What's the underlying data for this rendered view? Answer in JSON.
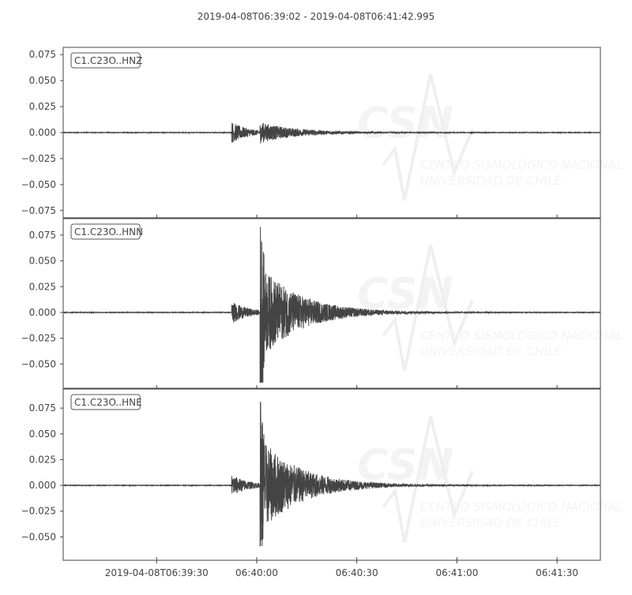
{
  "chart_data": {
    "type": "line",
    "title": "2019-04-08T06:39:02  -  2019-04-08T06:41:42.995",
    "start_time": "2019-04-08T06:39:02",
    "end_time": "2019-04-08T06:41:42.995",
    "x_ticks": [
      "2019-04-08T06:39:30",
      "06:40:00",
      "06:40:30",
      "06:41:00",
      "06:41:30"
    ],
    "x_tick_seconds": [
      28,
      58,
      88,
      118,
      148
    ],
    "line_color": "#444444",
    "grid": false,
    "watermark": {
      "logo": "CSN",
      "line1": "CENTRO SISMOLÓGICO NACIONAL",
      "line2": "UNIVERSIDAD DE CHILE"
    },
    "traces": [
      {
        "name": "C1.C23O..HNZ",
        "ylim": [
          -0.082,
          0.082
        ],
        "y_ticks": [
          "0.075",
          "0.050",
          "0.025",
          "0.000",
          "−0.025",
          "−0.050",
          "−0.075"
        ],
        "y_tick_values": [
          0.075,
          0.05,
          0.025,
          0,
          -0.025,
          -0.05,
          -0.075
        ],
        "p_onset_s": 50.5,
        "s_onset_s": 59,
        "peak_max": 0.012,
        "peak_min": -0.012
      },
      {
        "name": "C1.C23O..HNN",
        "ylim": [
          -0.0735,
          0.091
        ],
        "y_ticks": [
          "0.075",
          "0.050",
          "0.025",
          "0.000",
          "−0.025",
          "−0.050"
        ],
        "y_tick_values": [
          0.075,
          0.05,
          0.025,
          0,
          -0.025,
          -0.05
        ],
        "p_onset_s": 50.5,
        "s_onset_s": 59,
        "peak_max": 0.083,
        "peak_min": -0.068
      },
      {
        "name": "C1.C23O..HNE",
        "ylim": [
          -0.0727,
          0.0935
        ],
        "y_ticks": [
          "0.075",
          "0.050",
          "0.025",
          "0.000",
          "−0.025",
          "−0.050"
        ],
        "y_tick_values": [
          0.075,
          0.05,
          0.025,
          0,
          -0.025,
          -0.05
        ],
        "p_onset_s": 50.5,
        "s_onset_s": 59,
        "peak_max": 0.081,
        "peak_min": -0.059
      }
    ]
  }
}
